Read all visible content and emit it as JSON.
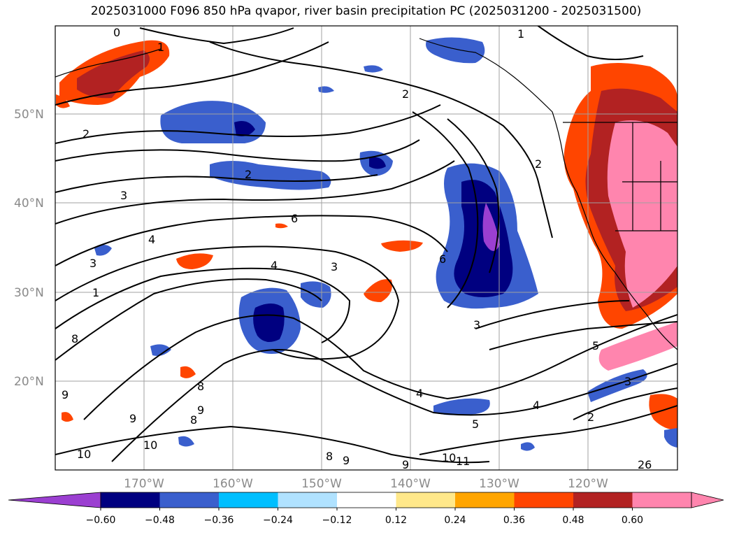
{
  "title": "2025031000 F096 850 hPa qvapor, river basin precipitation PC (2025031200 - 2025031500)",
  "map": {
    "lat_labels": [
      "50°N",
      "40°N",
      "30°N",
      "20°N"
    ],
    "lon_labels": [
      "170°W",
      "160°W",
      "150°W",
      "140°W",
      "130°W",
      "120°W"
    ],
    "contour_labels": [
      "0",
      "1",
      "1",
      "2",
      "2",
      "2",
      "2",
      "3",
      "3",
      "3",
      "4",
      "4",
      "6",
      "6",
      "3",
      "4",
      "5",
      "5",
      "4",
      "3",
      "2",
      "1",
      "8",
      "8",
      "9",
      "9",
      "8",
      "9",
      "10",
      "10",
      "11",
      "10",
      "9",
      "9",
      "8",
      "26"
    ]
  },
  "colorbar": {
    "colors": [
      "#9b3fd1",
      "#000080",
      "#3a5fcd",
      "#00bfff",
      "#b0e2ff",
      "#ffffff",
      "#ffe88a",
      "#ffa500",
      "#ff4500",
      "#b22222",
      "#ff85ae",
      "#ff85ae"
    ],
    "tick_labels": [
      "−0.60",
      "−0.48",
      "−0.36",
      "−0.24",
      "−0.12",
      "0.12",
      "0.24",
      "0.36",
      "0.48",
      "0.60"
    ]
  }
}
